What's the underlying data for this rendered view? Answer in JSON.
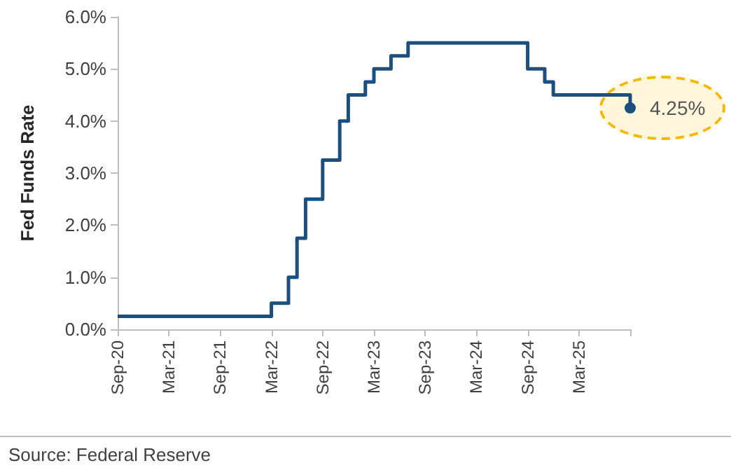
{
  "chart_data": {
    "type": "step",
    "ylabel": "Fed Funds Rate",
    "categories": [
      "Sep-20",
      null,
      null,
      null,
      null,
      null,
      "Mar-21",
      null,
      null,
      null,
      null,
      null,
      "Sep-21",
      null,
      null,
      null,
      null,
      null,
      "Mar-22",
      null,
      null,
      null,
      null,
      null,
      "Sep-22",
      null,
      null,
      null,
      null,
      null,
      "Mar-23",
      null,
      null,
      null,
      null,
      null,
      "Sep-23",
      null,
      null,
      null,
      null,
      null,
      "Mar-24",
      null,
      null,
      null,
      null,
      null,
      "Sep-24",
      null,
      null,
      null,
      null,
      null,
      "Mar-25",
      null,
      null,
      null,
      null,
      null,
      null
    ],
    "series": [
      {
        "color": "#1d4f7c",
        "values": [
          0.25,
          0.25,
          0.25,
          0.25,
          0.25,
          0.25,
          0.25,
          0.25,
          0.25,
          0.25,
          0.25,
          0.25,
          0.25,
          0.25,
          0.25,
          0.25,
          0.25,
          0.25,
          0.5,
          0.5,
          1.0,
          1.75,
          2.5,
          2.5,
          3.25,
          3.25,
          4.0,
          4.5,
          4.5,
          4.75,
          5.0,
          5.0,
          5.25,
          5.25,
          5.5,
          5.5,
          5.5,
          5.5,
          5.5,
          5.5,
          5.5,
          5.5,
          5.5,
          5.5,
          5.5,
          5.5,
          5.5,
          5.5,
          5.0,
          5.0,
          4.75,
          4.5,
          4.5,
          4.5,
          4.5,
          4.5,
          4.5,
          4.5,
          4.5,
          4.5,
          4.25
        ],
        "value_labels": [
          null,
          null,
          null,
          null,
          null,
          null,
          null,
          null,
          null,
          null,
          null,
          null,
          null,
          null,
          null,
          null,
          null,
          null,
          null,
          null,
          null,
          null,
          null,
          null,
          null,
          null,
          null,
          null,
          null,
          null,
          null,
          null,
          null,
          null,
          null,
          null,
          null,
          null,
          null,
          null,
          null,
          null,
          null,
          null,
          null,
          null,
          null,
          null,
          null,
          null,
          null,
          null,
          null,
          null,
          null,
          null,
          null,
          null,
          null,
          null,
          "4.25%"
        ]
      }
    ],
    "ylim": [
      0,
      6
    ],
    "yticks": [
      {
        "value": 0,
        "label": "0.0%"
      },
      {
        "value": 1,
        "label": "1.0%"
      },
      {
        "value": 2,
        "label": "2.0%"
      },
      {
        "value": 3,
        "label": "3.0%"
      },
      {
        "value": 4,
        "label": "4.0%"
      },
      {
        "value": 5,
        "label": "5.0%"
      },
      {
        "value": 6,
        "label": "6.0%"
      }
    ],
    "grid": false,
    "annotations": [
      "Source: Federal Reserve"
    ]
  }
}
